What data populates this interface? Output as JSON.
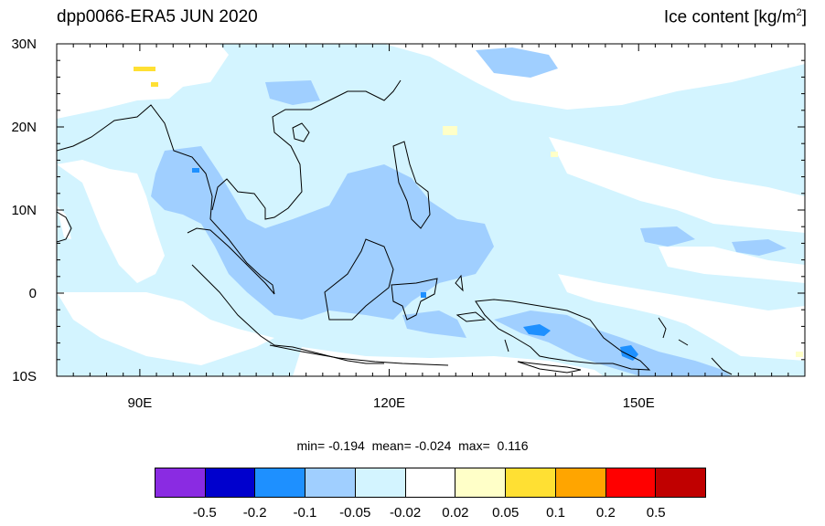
{
  "title": {
    "left": "dpp0066-ERA5 JUN 2020",
    "right_text": "Ice content  [kg/m",
    "right_sup": "2",
    "right_tail": "]"
  },
  "axes": {
    "lat_labels": [
      "30N",
      "20N",
      "10N",
      "0",
      "10S"
    ],
    "lon_labels": [
      "90E",
      "120E",
      "150E"
    ],
    "lat_range": [
      -10,
      30
    ],
    "lon_range": [
      80,
      170
    ]
  },
  "stats": {
    "min_label": "min=",
    "min_value": "-0.194",
    "mean_label": "mean=",
    "mean_value": "-0.024",
    "max_label": "max=",
    "max_value": "0.116"
  },
  "colorbar": {
    "colors": [
      "#8a2be2",
      "#0000cd",
      "#1e90ff",
      "#a0cfff",
      "#d3f4ff",
      "#ffffff",
      "#ffffc8",
      "#ffe033",
      "#ffa500",
      "#ff0000",
      "#c00000"
    ],
    "labels": [
      "-0.5",
      "-0.2",
      "-0.1",
      "-0.05",
      "-0.02",
      "0.02",
      "0.05",
      "0.1",
      "0.2",
      "0.5"
    ]
  },
  "colors": {
    "field_light": "#d3f4ff",
    "field_medium": "#a0cfff",
    "field_strong": "#1e90ff",
    "field_positive_weak": "#ffffc8",
    "field_positive": "#ffe033",
    "coastline": "#000000"
  }
}
